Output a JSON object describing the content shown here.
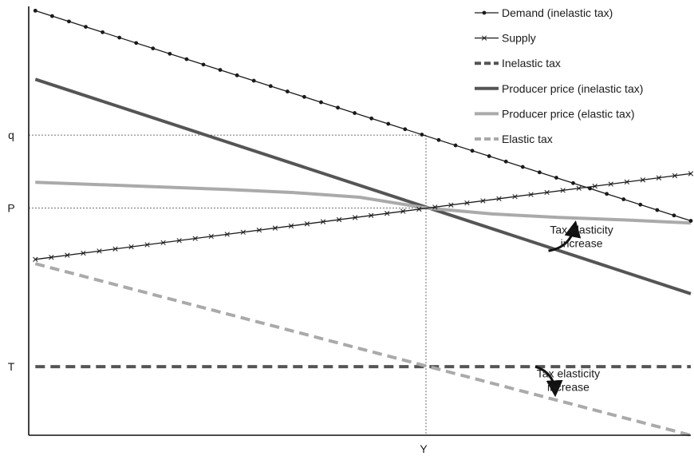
{
  "chart_data": {
    "type": "line",
    "title": "",
    "xlabel": "",
    "ylabel": "",
    "grid": false,
    "legend_position": "top-right",
    "xlim": [
      0,
      100
    ],
    "ylim": [
      0,
      100
    ],
    "x_ticks": [
      {
        "label": "Y",
        "value": 60
      }
    ],
    "y_ticks": [
      {
        "label": "q",
        "value": 70
      },
      {
        "label": "P",
        "value": 53
      },
      {
        "label": "T",
        "value": 16
      }
    ],
    "series": [
      {
        "name": "Demand (inelastic tax)",
        "color": "#1a1a1a",
        "dash": "solid",
        "marker": "dot",
        "width": 1.3,
        "x": [
          1,
          100
        ],
        "y": [
          99,
          50
        ],
        "marker_count": 40
      },
      {
        "name": "Supply",
        "color": "#1a1a1a",
        "dash": "solid",
        "marker": "x",
        "width": 1.3,
        "x": [
          1,
          100
        ],
        "y": [
          41,
          61
        ],
        "marker_count": 42
      },
      {
        "name": "Inelastic tax",
        "color": "#555555",
        "dash": "dashed",
        "marker": "none",
        "width": 4,
        "x": [
          1,
          100
        ],
        "y": [
          16,
          16
        ]
      },
      {
        "name": "Producer price (inelastic tax)",
        "color": "#555555",
        "dash": "solid",
        "marker": "none",
        "width": 4,
        "x": [
          1,
          100
        ],
        "y": [
          83,
          33
        ]
      },
      {
        "name": "Producer price (elastic tax)",
        "color": "#aaaaaa",
        "dash": "solid",
        "marker": "none",
        "width": 4,
        "x": [
          1,
          18,
          30,
          40,
          50,
          60,
          70,
          80,
          90,
          100
        ],
        "y": [
          59,
          58,
          57.3,
          56.6,
          55.5,
          53,
          51.6,
          50.8,
          50.2,
          49.5
        ]
      },
      {
        "name": "Elastic tax",
        "color": "#aaaaaa",
        "dash": "dashed",
        "marker": "none",
        "width": 4,
        "x": [
          1,
          100
        ],
        "y": [
          40,
          0
        ]
      }
    ],
    "reference_lines": [
      {
        "kind": "horizontal",
        "y": 70,
        "x_to": 60
      },
      {
        "kind": "horizontal",
        "y": 53,
        "x_to": 60
      },
      {
        "kind": "vertical",
        "x": 60,
        "y_to": 70
      }
    ],
    "annotations": [
      {
        "lines": [
          "Tax elasticity",
          "increase"
        ],
        "x": 83.5,
        "y": 47,
        "arrow": {
          "from": [
            78.5,
            43
          ],
          "to": [
            82.5,
            49
          ]
        }
      },
      {
        "lines": [
          "Tax elasticity",
          "increase"
        ],
        "x": 81.5,
        "y": 13.5,
        "arrow": {
          "from": [
            76.5,
            16
          ],
          "to": [
            79.5,
            10
          ]
        }
      }
    ]
  }
}
